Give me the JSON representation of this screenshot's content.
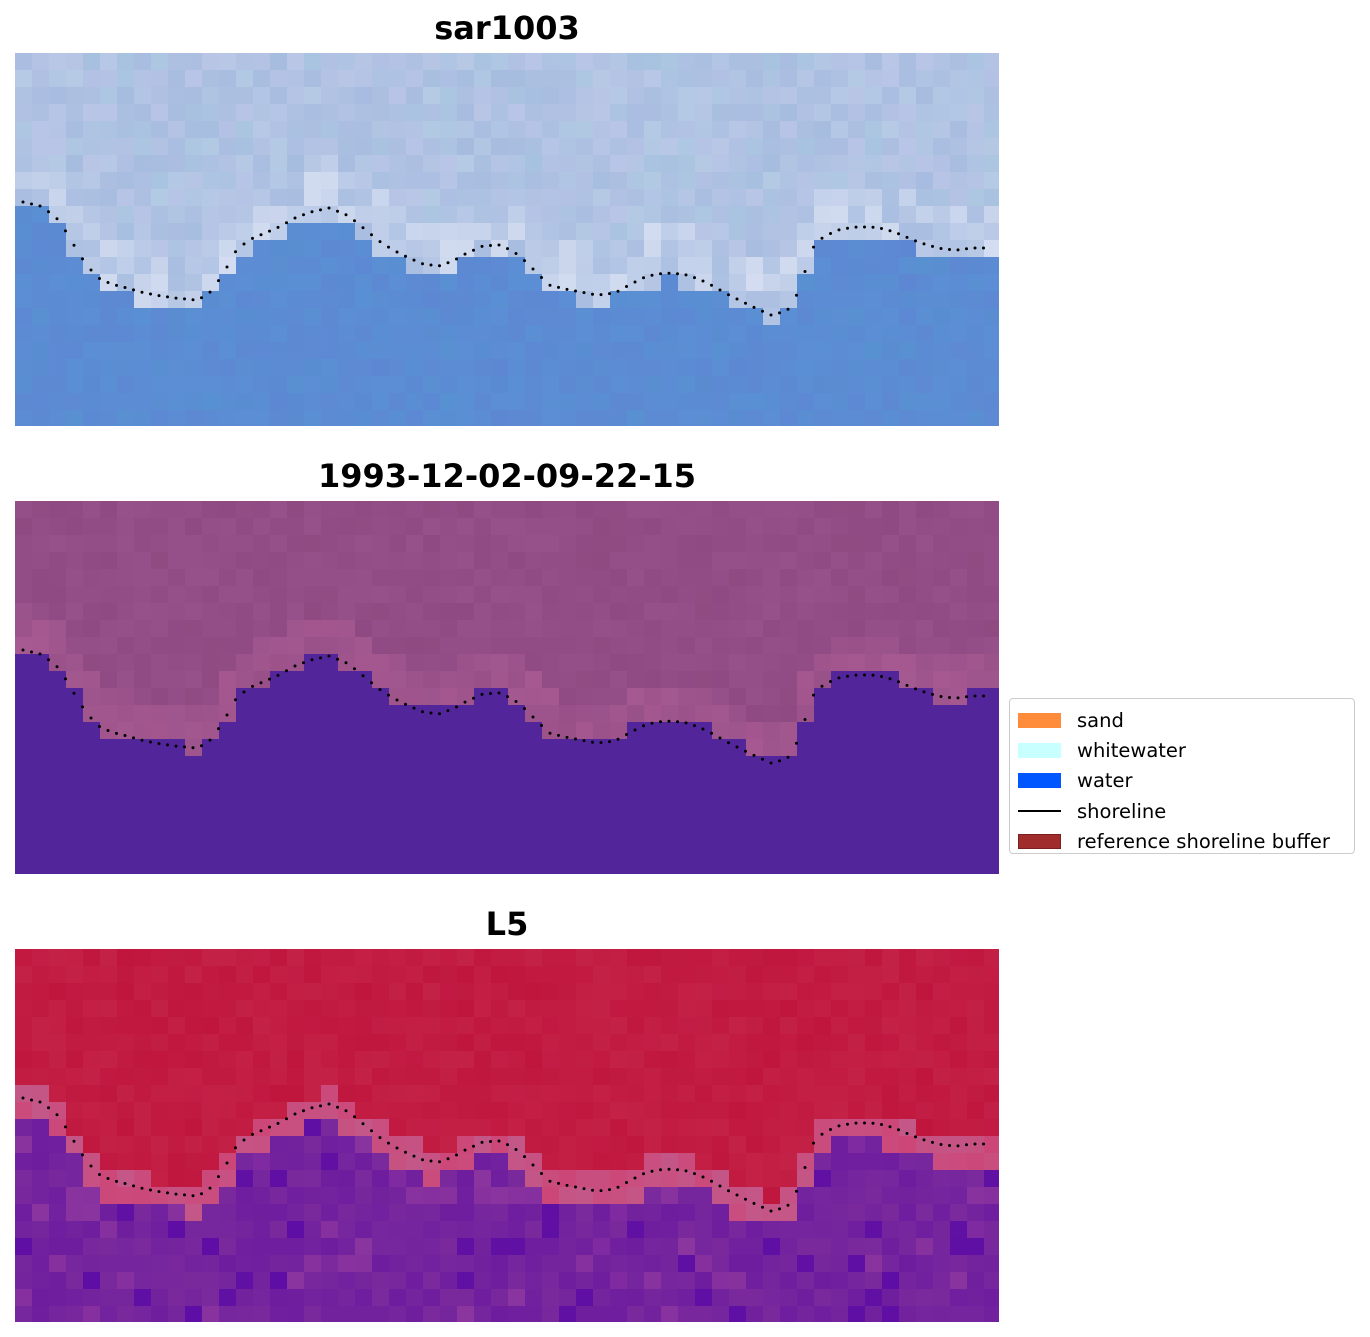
{
  "panels": [
    {
      "title": "sar1003",
      "style": "sar"
    },
    {
      "title": "1993-12-02-09-22-15",
      "style": "classified"
    },
    {
      "title": "L5",
      "style": "index"
    }
  ],
  "legend": {
    "items": [
      {
        "label": "sand",
        "kind": "patch",
        "color": "#ff8c3a"
      },
      {
        "label": "whitewater",
        "kind": "patch",
        "color": "#c8ffff"
      },
      {
        "label": "water",
        "kind": "patch",
        "color": "#0056ff"
      },
      {
        "label": "shoreline",
        "kind": "line",
        "color": "#000000"
      },
      {
        "label": "reference shoreline buffer",
        "kind": "patch",
        "color": "#a02c2c",
        "edge": "#7a1e1e"
      }
    ]
  },
  "colors": {
    "sar_top": "#a8bde0",
    "sar_whitewater": "#d8e0f2",
    "sar_water": "#5b8fd4",
    "classified_land": "#96508a",
    "classified_water": "#52259a",
    "index_land": "#c0163e",
    "index_edge": "#c25a8a",
    "index_water": "#7a2a9c",
    "shoreline_dots": "#000000"
  }
}
